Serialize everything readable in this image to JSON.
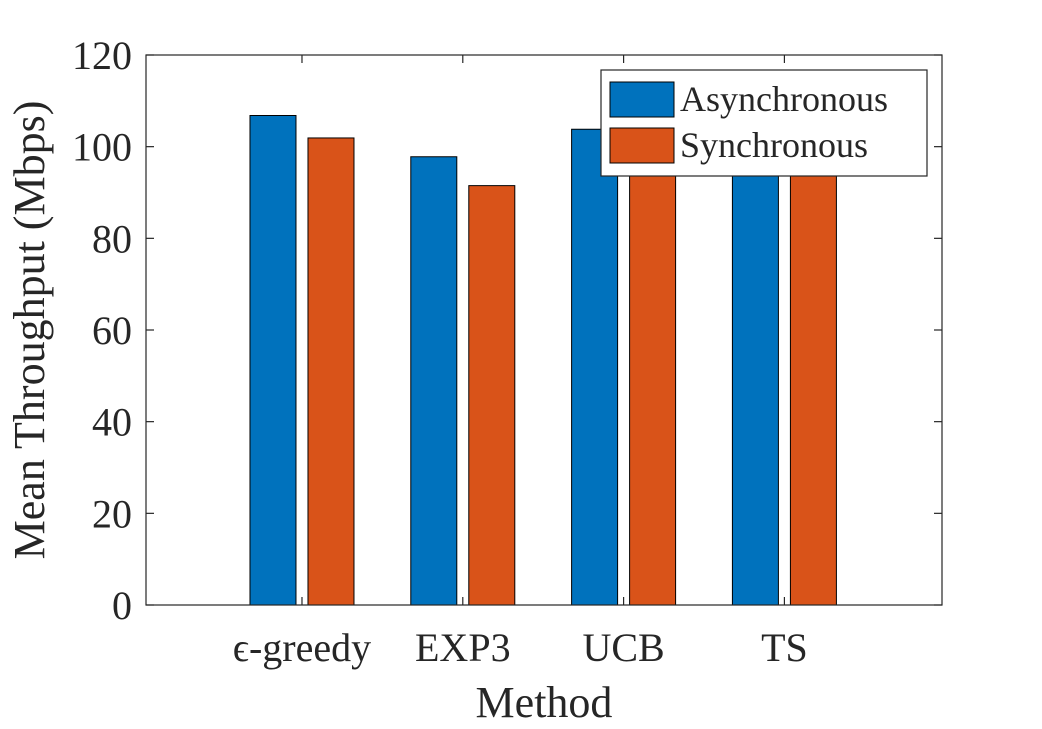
{
  "chart_data": {
    "type": "bar",
    "title": "",
    "xlabel": "Method",
    "ylabel": "Mean Throughput (Mbps)",
    "categories": [
      "ϵ-greedy",
      "EXP3",
      "UCB",
      "TS"
    ],
    "series": [
      {
        "name": "Asynchronous",
        "color": "#0072BD",
        "values": [
          106.8,
          97.8,
          103.8,
          102.0
        ]
      },
      {
        "name": "Synchronous",
        "color": "#D95319",
        "values": [
          101.9,
          91.5,
          100.4,
          97.2
        ]
      }
    ],
    "ylim": [
      0,
      120
    ],
    "yticks": [
      0,
      20,
      40,
      60,
      80,
      100,
      120
    ],
    "grid": false,
    "legend_position": "top-right"
  }
}
